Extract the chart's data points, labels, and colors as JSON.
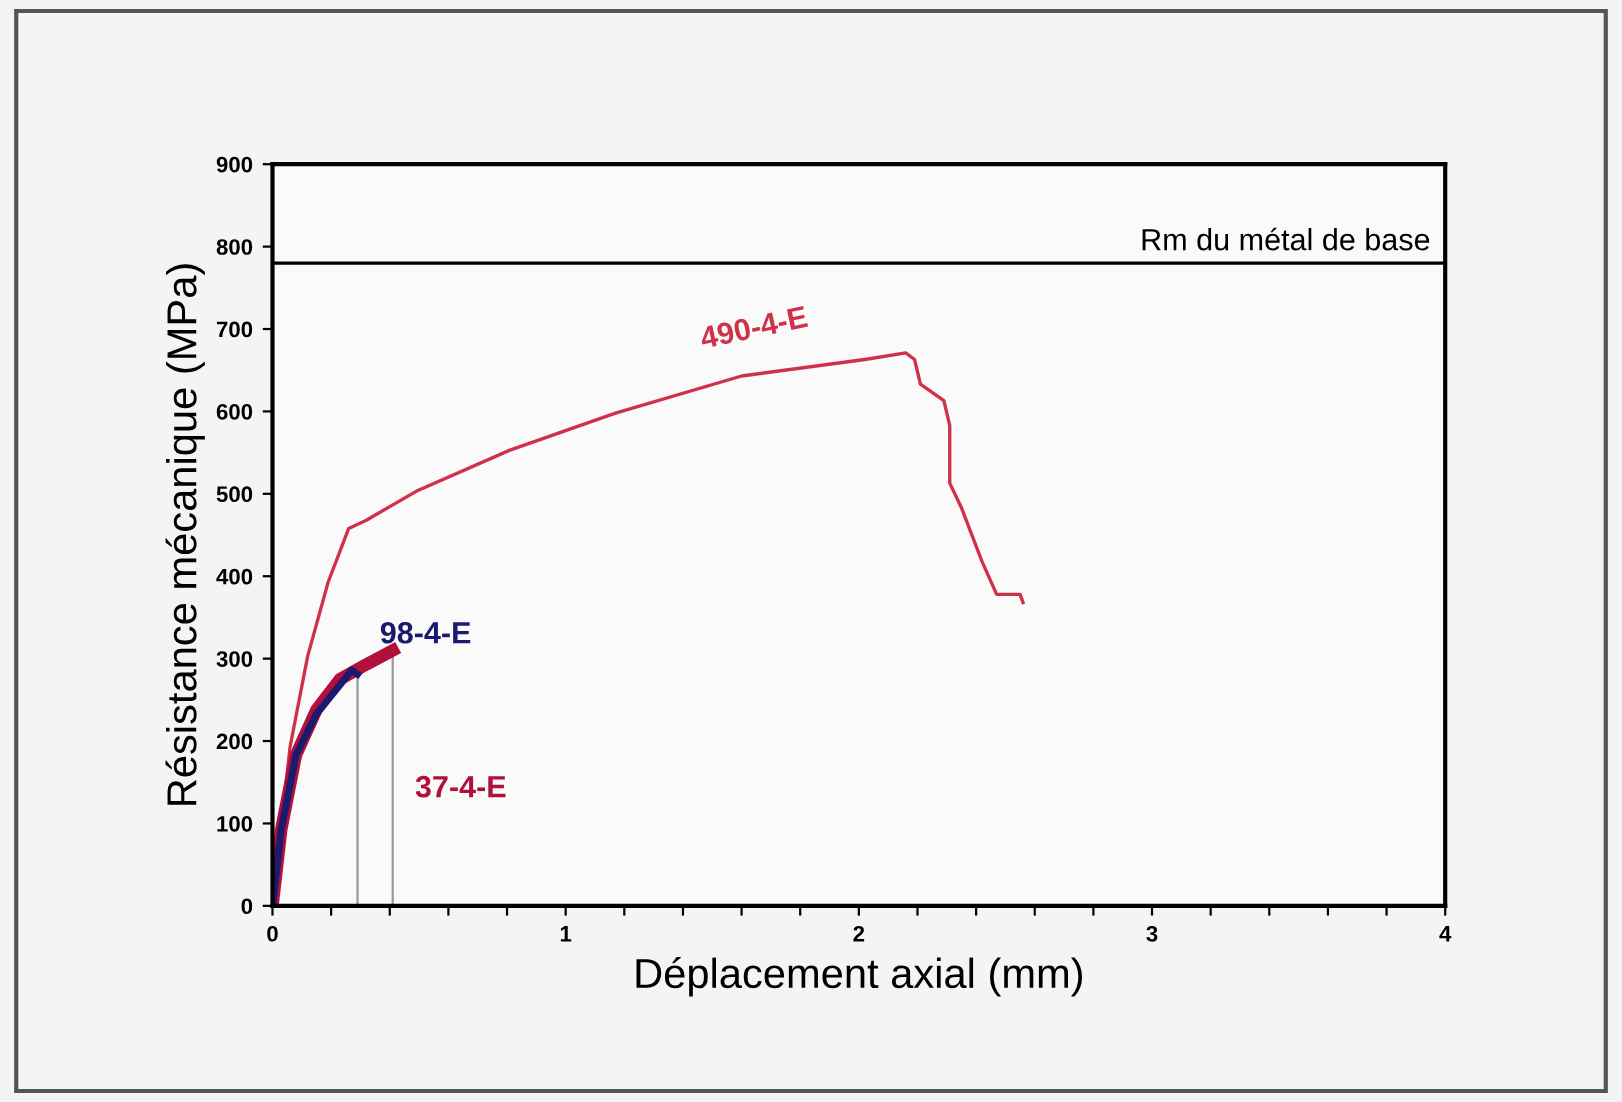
{
  "chart_data": {
    "type": "line",
    "xlabel": "Déplacement axial (mm)",
    "ylabel": "Résistance mécanique (MPa)",
    "xlim": [
      0,
      4
    ],
    "ylim": [
      0,
      900
    ],
    "xticks": [
      0,
      {
        "value": 0.2,
        "label": null
      },
      {
        "value": 0.4,
        "label": null
      },
      {
        "value": 0.6,
        "label": null
      },
      {
        "value": 0.8,
        "label": null
      },
      1,
      {
        "value": 1.2,
        "label": null
      },
      {
        "value": 1.4,
        "label": null
      },
      {
        "value": 1.6,
        "label": null
      },
      {
        "value": 1.8,
        "label": null
      },
      2,
      {
        "value": 2.2,
        "label": null
      },
      {
        "value": 2.4,
        "label": null
      },
      {
        "value": 2.6,
        "label": null
      },
      {
        "value": 2.8,
        "label": null
      },
      3,
      {
        "value": 3.2,
        "label": null
      },
      {
        "value": 3.4,
        "label": null
      },
      {
        "value": 3.6,
        "label": null
      },
      {
        "value": 3.8,
        "label": null
      },
      4
    ],
    "yticks": [
      0,
      100,
      200,
      300,
      400,
      500,
      600,
      700,
      800,
      900
    ],
    "grid": false,
    "legend": false,
    "marker": "none",
    "line_style": "solid",
    "series": [
      {
        "name": "490-4-E",
        "color": "#d0314a",
        "x": [
          0,
          0.06,
          0.12,
          0.19,
          0.26,
          0.32,
          0.49,
          0.81,
          1.17,
          1.6,
          2.02,
          2.16,
          2.19,
          2.21,
          2.29,
          2.31,
          2.31,
          2.35,
          2.42,
          2.47,
          2.55,
          2.56
        ],
        "values": [
          0,
          193,
          303,
          393,
          458,
          468,
          503,
          553,
          598,
          643,
          663,
          671,
          663,
          633,
          613,
          583,
          513,
          483,
          418,
          378,
          378,
          368
        ]
      },
      {
        "color": "#999999",
        "x": [
          0.29,
          0.29
        ],
        "values": [
          281,
          0
        ]
      },
      {
        "color": "#999999",
        "x": [
          0.41,
          0.41
        ],
        "values": [
          310,
          0
        ]
      },
      {
        "name": "37-4-E",
        "color": "#b0103a",
        "x": [
          0,
          0.03,
          0.08,
          0.15,
          0.23,
          0.32,
          0.41
        ],
        "values": [
          0,
          93,
          183,
          238,
          275,
          293,
          310
        ]
      },
      {
        "name": "98-4-E",
        "color": "#1a1a6e",
        "x": [
          0,
          0.03,
          0.08,
          0.15,
          0.23,
          0.27,
          0.29
        ],
        "values": [
          0,
          93,
          183,
          233,
          268,
          286,
          281
        ]
      }
    ],
    "ref_lines": [
      {
        "axis": "y",
        "value": 780,
        "label": "Rm du métal de base",
        "color": "#000000"
      }
    ]
  }
}
